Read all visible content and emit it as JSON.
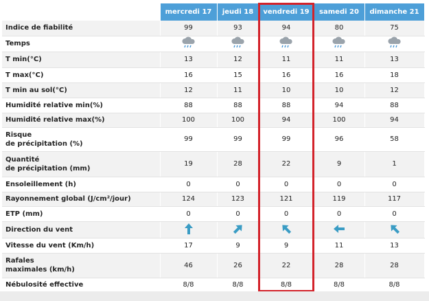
{
  "table": {
    "columns": [
      "mercredi 17",
      "jeudi 18",
      "vendredi 19",
      "samedi 20",
      "dimanche 21"
    ],
    "rows": [
      {
        "label": [
          "Indice de fiabilité"
        ],
        "values": [
          99,
          93,
          94,
          80,
          75
        ]
      },
      {
        "label": [
          "Temps"
        ]
      },
      {
        "label": [
          "T min(°C)"
        ],
        "values": [
          13,
          12,
          11,
          11,
          13
        ]
      },
      {
        "label": [
          "T max(°C)"
        ],
        "values": [
          16,
          15,
          16,
          16,
          18
        ]
      },
      {
        "label": [
          "T min au sol(°C)"
        ],
        "values": [
          12,
          11,
          10,
          10,
          12
        ]
      },
      {
        "label": [
          "Humidité relative min(%)"
        ],
        "values": [
          88,
          88,
          88,
          94,
          88
        ]
      },
      {
        "label": [
          "Humidité relative max(%)"
        ],
        "values": [
          100,
          100,
          94,
          100,
          94
        ]
      },
      {
        "label": [
          "Risque",
          "de précipitation (%)"
        ],
        "values": [
          99,
          99,
          99,
          96,
          58
        ]
      },
      {
        "label": [
          "Quantité",
          "de précipitation (mm)"
        ],
        "values": [
          19,
          28,
          22,
          9,
          1
        ]
      },
      {
        "label": [
          "Ensoleillement (h)"
        ],
        "values": [
          0,
          0,
          0,
          0,
          0
        ]
      },
      {
        "label": [
          "Rayonnement global (J/cm²/jour)"
        ],
        "values": [
          124,
          123,
          121,
          119,
          117
        ]
      },
      {
        "label": [
          "ETP (mm)"
        ],
        "values": [
          0,
          0,
          0,
          0,
          0
        ]
      },
      {
        "label": [
          "Direction du vent"
        ]
      },
      {
        "label": [
          "Vitesse du vent (Km/h)"
        ],
        "values": [
          17,
          9,
          9,
          11,
          13
        ]
      },
      {
        "label": [
          "Rafales",
          "maximales (km/h)"
        ],
        "values": [
          46,
          26,
          22,
          28,
          28
        ]
      },
      {
        "label": [
          "Nébulosité effective"
        ],
        "values": [
          "8/8",
          "8/8",
          "8/8",
          "8/8",
          "8/8"
        ]
      }
    ]
  }
}
